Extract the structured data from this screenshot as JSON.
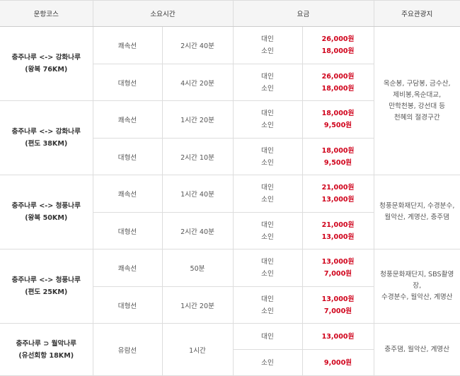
{
  "header": {
    "course": "운항코스",
    "duration": "소요시간",
    "fare": "요금",
    "sights": "주요관광지"
  },
  "routes": [
    {
      "course": [
        "충주나루 <-> 강화나루",
        "(왕복 76KM)"
      ],
      "rows": [
        {
          "boat": "쾌속선",
          "time": "2시간 40분",
          "types": [
            "대인",
            "소인"
          ],
          "prices": [
            "26,000원",
            "18,000원"
          ]
        },
        {
          "boat": "대형선",
          "time": "4시간 20분",
          "types": [
            "대인",
            "소인"
          ],
          "prices": [
            "26,000원",
            "18,000원"
          ]
        }
      ]
    },
    {
      "course": [
        "충주나루 <-> 강화나루",
        "(편도 38KM)"
      ],
      "rows": [
        {
          "boat": "쾌속선",
          "time": "1시간 20분",
          "types": [
            "대인",
            "소인"
          ],
          "prices": [
            "18,000원",
            "9,500원"
          ]
        },
        {
          "boat": "대형선",
          "time": "2시간 10분",
          "types": [
            "대인",
            "소인"
          ],
          "prices": [
            "18,000원",
            "9,500원"
          ]
        }
      ]
    },
    {
      "course": [
        "충주나루 <-> 청풍나루",
        "(왕복 50KM)"
      ],
      "rows": [
        {
          "boat": "쾌속선",
          "time": "1시간 40분",
          "types": [
            "대인",
            "소인"
          ],
          "prices": [
            "21,000원",
            "13,000원"
          ]
        },
        {
          "boat": "대형선",
          "time": "2시간 40분",
          "types": [
            "대인",
            "소인"
          ],
          "prices": [
            "21,000원",
            "13,000원"
          ]
        }
      ]
    },
    {
      "course": [
        "충주나루 <-> 청풍나루",
        "(편도 25KM)"
      ],
      "rows": [
        {
          "boat": "쾌속선",
          "time": "50분",
          "types": [
            "대인",
            "소인"
          ],
          "prices": [
            "13,000원",
            "7,000원"
          ]
        },
        {
          "boat": "대형선",
          "time": "1시간 20분",
          "types": [
            "대인",
            "소인"
          ],
          "prices": [
            "13,000원",
            "7,000원"
          ]
        }
      ]
    },
    {
      "course": [
        "충주나루 ⊃ 월악나루",
        "(유선회항 18KM)"
      ],
      "boat": "유람선",
      "time": "1시간",
      "fares": [
        {
          "type": "대인",
          "price": "13,000원"
        },
        {
          "type": "소인",
          "price": "9,000원"
        }
      ]
    }
  ],
  "sights": [
    [
      "옥순봉, 구담봉, 금수산,",
      "제비봉,옥순대교,",
      "만학천봉, 강선대 등",
      "천혜의 절경구간"
    ],
    [
      "청풍문화재단지, 수경분수,",
      "월악산, 계명산, 충주댐"
    ],
    [
      "청풍문화재단지, SBS촬영장,",
      "수경분수, 월악산, 계명산"
    ],
    [
      "충주댐, 월악산, 계명산"
    ]
  ]
}
